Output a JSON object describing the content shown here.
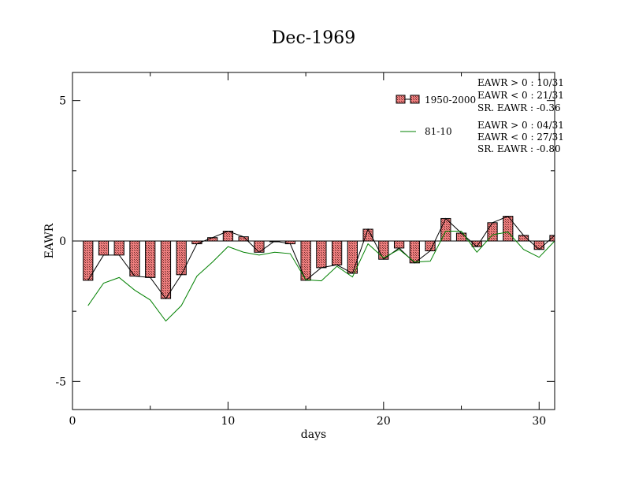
{
  "chart_data": {
    "type": "bar",
    "title": "Dec-1969",
    "xlabel": "days",
    "ylabel": "EAWR",
    "xlim": [
      0,
      31
    ],
    "ylim": [
      -6,
      6
    ],
    "x_ticks": [
      0,
      10,
      20,
      30
    ],
    "y_ticks": [
      -5,
      0,
      5
    ],
    "x": [
      1,
      2,
      3,
      4,
      5,
      6,
      7,
      8,
      9,
      10,
      11,
      12,
      13,
      14,
      15,
      16,
      17,
      18,
      19,
      20,
      21,
      22,
      23,
      24,
      25,
      26,
      27,
      28,
      29,
      30,
      31
    ],
    "series": [
      {
        "name": "1950-2000",
        "kind": "bar",
        "color": "#f08080",
        "values": [
          -1.4,
          -0.5,
          -0.5,
          -1.25,
          -1.3,
          -2.05,
          -1.2,
          -0.1,
          0.12,
          0.35,
          0.15,
          -0.4,
          0.0,
          -0.1,
          -1.4,
          -0.95,
          -0.85,
          -1.15,
          0.42,
          -0.65,
          -0.25,
          -0.78,
          -0.35,
          0.8,
          0.28,
          -0.2,
          0.65,
          0.88,
          0.2,
          -0.3,
          0.2
        ]
      },
      {
        "name": "",
        "kind": "line",
        "color": "#000000",
        "values": [
          -1.4,
          -0.5,
          -0.5,
          -1.25,
          -1.3,
          -2.05,
          -1.2,
          -0.1,
          0.12,
          0.35,
          0.15,
          -0.4,
          0.0,
          -0.1,
          -1.4,
          -0.95,
          -0.85,
          -1.15,
          0.42,
          -0.65,
          -0.25,
          -0.78,
          -0.35,
          0.8,
          0.28,
          -0.2,
          0.65,
          0.88,
          0.2,
          -0.3,
          0.2
        ]
      },
      {
        "name": "81-10",
        "kind": "line",
        "color": "#008000",
        "values": [
          -2.3,
          -1.5,
          -1.3,
          -1.75,
          -2.1,
          -2.85,
          -2.3,
          -1.25,
          -0.75,
          -0.2,
          -0.4,
          -0.5,
          -0.4,
          -0.45,
          -1.38,
          -1.42,
          -0.9,
          -1.28,
          -0.1,
          -0.6,
          -0.3,
          -0.75,
          -0.72,
          0.35,
          0.35,
          -0.4,
          0.22,
          0.32,
          -0.3,
          -0.58,
          0.0
        ]
      }
    ],
    "legend": {
      "placement": "top-right",
      "items": [
        {
          "label": "1950-2000",
          "stats": [
            "EAWR > 0 : 10/31",
            "EAWR < 0 : 21/31",
            "SR. EAWR : -0.36"
          ]
        },
        {
          "label": "81-10",
          "stats": [
            "EAWR > 0 : 04/31",
            "EAWR < 0 : 27/31",
            "SR. EAWR : -0.80"
          ]
        }
      ]
    }
  }
}
